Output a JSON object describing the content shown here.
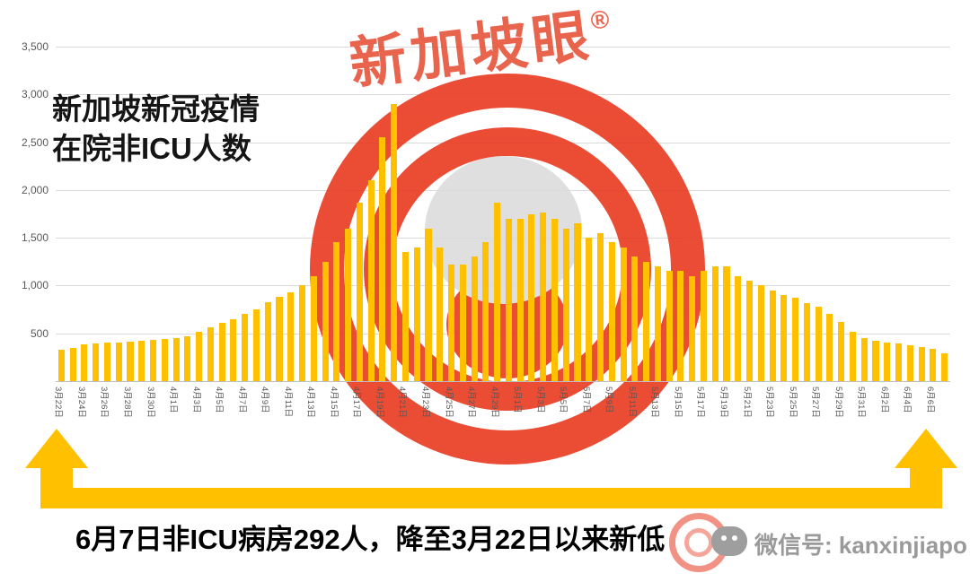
{
  "title": {
    "line1": "新加坡新冠疫情",
    "line2": "在院非ICU人数"
  },
  "watermark": {
    "brand": "新加坡眼",
    "registered_mark": "®"
  },
  "footer": {
    "headline": "6月7日非ICU病房292人，降至3月22日以来新低",
    "wechat_label": "微信号: kanxinjiapo"
  },
  "colors": {
    "bar": "#FFC000",
    "arrow": "#FFC000",
    "watermark_red": "#E8391F",
    "watermark_gray": "#DCDCDC",
    "gridline": "#DADADA",
    "axis_text": "#595959",
    "headline_text": "#000000",
    "wechat_text": "#9A9A9A"
  },
  "chart_data": {
    "type": "bar",
    "title": "新加坡新冠疫情 在院非ICU人数",
    "xlabel": "",
    "ylabel": "",
    "ylim": [
      0,
      3500
    ],
    "ytick_step": 500,
    "ytick_labels": [
      "500",
      "1,000",
      "1,500",
      "2,000",
      "2,500",
      "3,000",
      "3,500"
    ],
    "grid": true,
    "legend": "none",
    "x_label_every": 2,
    "categories": [
      "3月22日",
      "3月23日",
      "3月24日",
      "3月25日",
      "3月26日",
      "3月27日",
      "3月28日",
      "3月29日",
      "3月30日",
      "3月31日",
      "4月1日",
      "4月2日",
      "4月3日",
      "4月4日",
      "4月5日",
      "4月6日",
      "4月7日",
      "4月8日",
      "4月9日",
      "4月10日",
      "4月11日",
      "4月12日",
      "4月13日",
      "4月14日",
      "4月15日",
      "4月16日",
      "4月17日",
      "4月18日",
      "4月19日",
      "4月20日",
      "4月21日",
      "4月22日",
      "4月23日",
      "4月24日",
      "4月25日",
      "4月26日",
      "4月27日",
      "4月28日",
      "4月29日",
      "4月30日",
      "5月1日",
      "5月2日",
      "5月3日",
      "5月4日",
      "5月5日",
      "5月6日",
      "5月7日",
      "5月8日",
      "5月9日",
      "5月10日",
      "5月11日",
      "5月12日",
      "5月13日",
      "5月14日",
      "5月15日",
      "5月16日",
      "5月17日",
      "5月18日",
      "5月19日",
      "5月20日",
      "5月21日",
      "5月22日",
      "5月23日",
      "5月24日",
      "5月25日",
      "5月26日",
      "5月27日",
      "5月28日",
      "5月29日",
      "5月30日",
      "5月31日",
      "6月1日",
      "6月2日",
      "6月3日",
      "6月4日",
      "6月5日",
      "6月6日",
      "6月7日"
    ],
    "values": [
      330,
      345,
      385,
      395,
      400,
      405,
      415,
      420,
      430,
      445,
      455,
      470,
      520,
      560,
      610,
      650,
      700,
      755,
      830,
      880,
      930,
      1000,
      1100,
      1250,
      1450,
      1600,
      1870,
      2100,
      2550,
      2900,
      1350,
      1400,
      1600,
      1400,
      1220,
      1220,
      1300,
      1450,
      1870,
      1700,
      1700,
      1750,
      1760,
      1700,
      1600,
      1650,
      1500,
      1550,
      1450,
      1400,
      1300,
      1250,
      1200,
      1150,
      1150,
      1100,
      1150,
      1200,
      1200,
      1100,
      1050,
      1000,
      950,
      900,
      870,
      820,
      780,
      700,
      620,
      520,
      450,
      420,
      400,
      390,
      380,
      360,
      340,
      292
    ]
  }
}
